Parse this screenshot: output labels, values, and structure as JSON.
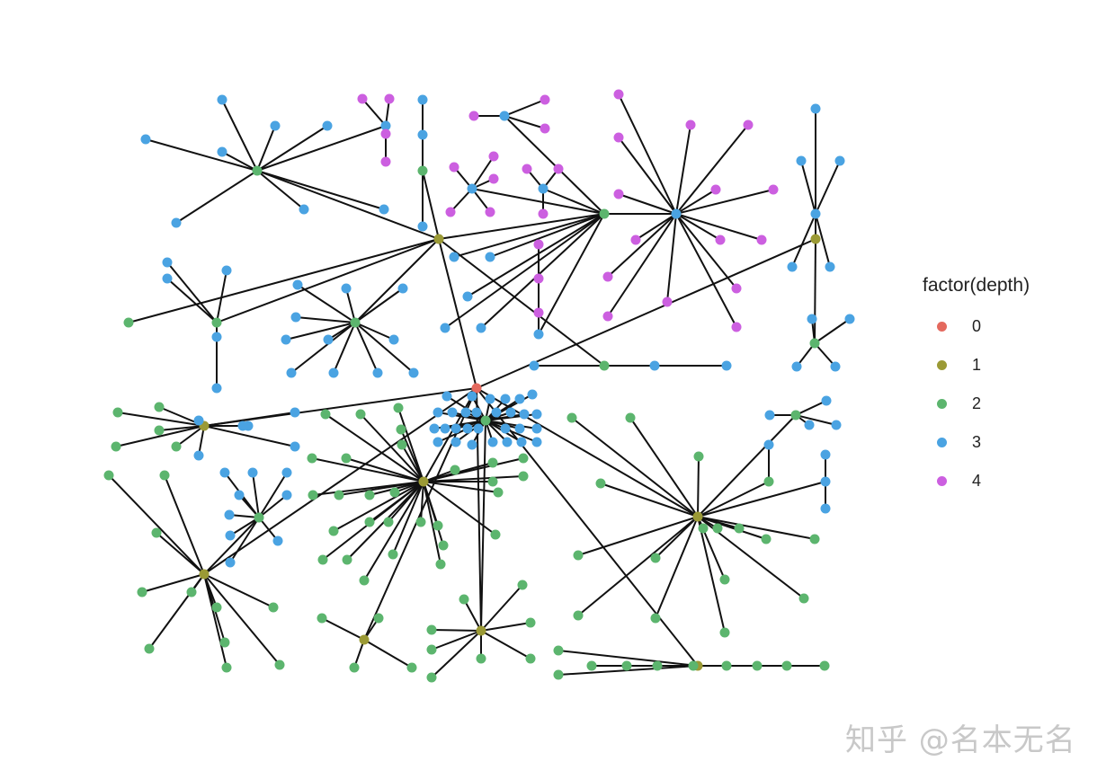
{
  "chart_data": {
    "type": "network",
    "layout": "tree",
    "color_by": "depth",
    "node_groups": [
      {
        "depth": 0,
        "parent": -1,
        "count": 1
      },
      {
        "depth": 1,
        "parent": 0,
        "count": 9
      },
      {
        "depth": 2,
        "parent": 1,
        "count": 7
      },
      {
        "depth": 3,
        "parent": 10,
        "count": 9
      },
      {
        "depth": 4,
        "parent": 25,
        "count": 4
      },
      {
        "depth": 3,
        "parent": 31,
        "count": 1
      },
      {
        "depth": 3,
        "parent": 15,
        "count": 2
      },
      {
        "depth": 3,
        "parent": 11,
        "count": 10
      },
      {
        "depth": 4,
        "parent": 33,
        "count": 15
      },
      {
        "depth": 4,
        "parent": 34,
        "count": 3
      },
      {
        "depth": 4,
        "parent": 35,
        "count": 5
      },
      {
        "depth": 4,
        "parent": 36,
        "count": 3
      },
      {
        "depth": 4,
        "parent": 42,
        "count": 3
      },
      {
        "depth": 3,
        "parent": 16,
        "count": 3
      },
      {
        "depth": 2,
        "parent": 2,
        "count": 1
      },
      {
        "depth": 3,
        "parent": 75,
        "count": 4
      },
      {
        "depth": 3,
        "parent": 2,
        "count": 1
      },
      {
        "depth": 3,
        "parent": 80,
        "count": 5
      },
      {
        "depth": 3,
        "parent": 13,
        "count": 5
      },
      {
        "depth": 3,
        "parent": 14,
        "count": 11
      },
      {
        "depth": 2,
        "parent": 3,
        "count": 5
      },
      {
        "depth": 3,
        "parent": 3,
        "count": 6
      },
      {
        "depth": 2,
        "parent": 4,
        "count": 29
      },
      {
        "depth": 2,
        "parent": 8,
        "count": 1
      },
      {
        "depth": 3,
        "parent": 142,
        "count": 29
      },
      {
        "depth": 2,
        "parent": 5,
        "count": 16
      },
      {
        "depth": 2,
        "parent": 5,
        "count": 1
      },
      {
        "depth": 3,
        "parent": 188,
        "count": 4
      },
      {
        "depth": 2,
        "parent": 5,
        "count": 1
      },
      {
        "depth": 3,
        "parent": 193,
        "count": 1
      },
      {
        "depth": 3,
        "parent": 5,
        "count": 1
      },
      {
        "depth": 3,
        "parent": 195,
        "count": 2
      },
      {
        "depth": 2,
        "parent": 6,
        "count": 11
      },
      {
        "depth": 2,
        "parent": 6,
        "count": 1
      },
      {
        "depth": 3,
        "parent": 209,
        "count": 9
      },
      {
        "depth": 2,
        "parent": 7,
        "count": 4
      },
      {
        "depth": 2,
        "parent": 8,
        "count": 8
      },
      {
        "depth": 2,
        "parent": 9,
        "count": 10
      }
    ],
    "edge_color": "#111111"
  },
  "legend": {
    "title": "factor(depth)",
    "position": "right",
    "items": [
      {
        "label": "0",
        "color": "#e4695e"
      },
      {
        "label": "1",
        "color": "#9b9a35"
      },
      {
        "label": "2",
        "color": "#5cb56e"
      },
      {
        "label": "3",
        "color": "#4aa3e2"
      },
      {
        "label": "4",
        "color": "#cc5fe0"
      }
    ]
  },
  "watermark": "知乎 @名本无名"
}
